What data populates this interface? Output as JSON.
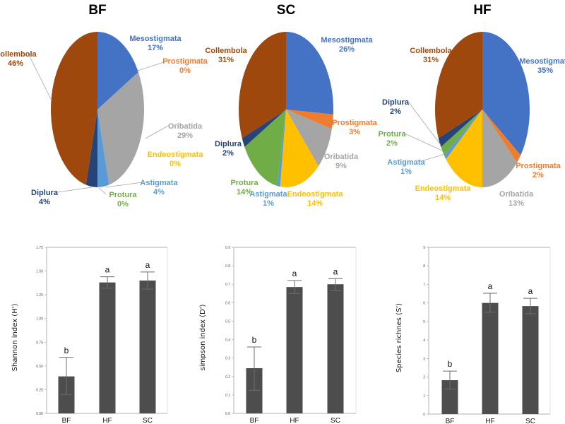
{
  "colors": {
    "Mesostigmata": "#4472c4",
    "Prostigmata": "#ed7d31",
    "Oribatida": "#a5a5a5",
    "Endeostigmata": "#ffc000",
    "Astigmata": "#5b9bd5",
    "Protura": "#70ad47",
    "Diplura": "#264478",
    "Collembola": "#9e480e",
    "bar": "#4d4d4d"
  },
  "chart_data": [
    {
      "type": "pie",
      "title": "BF",
      "slices": [
        {
          "name": "Mesostigmata",
          "value": 17,
          "label": "17%"
        },
        {
          "name": "Prostigmata",
          "value": 0,
          "label": "0%"
        },
        {
          "name": "Oribatida",
          "value": 29,
          "label": "29%"
        },
        {
          "name": "Endeostigmata",
          "value": 0,
          "label": "0%"
        },
        {
          "name": "Astigmata",
          "value": 4,
          "label": "4%"
        },
        {
          "name": "Protura",
          "value": 0,
          "label": "0%"
        },
        {
          "name": "Diplura",
          "value": 4,
          "label": "4%"
        },
        {
          "name": "Collembola",
          "value": 46,
          "label": "46%"
        }
      ]
    },
    {
      "type": "pie",
      "title": "SC",
      "slices": [
        {
          "name": "Mesostigmata",
          "value": 26,
          "label": "26%"
        },
        {
          "name": "Prostigmata",
          "value": 3,
          "label": "3%"
        },
        {
          "name": "Oribatida",
          "value": 9,
          "label": "9%"
        },
        {
          "name": "Endeostigmata",
          "value": 14,
          "label": "14%"
        },
        {
          "name": "Astigmata",
          "value": 1,
          "label": "1%"
        },
        {
          "name": "Protura",
          "value": 14,
          "label": "14%"
        },
        {
          "name": "Diplura",
          "value": 2,
          "label": "2%"
        },
        {
          "name": "Collembola",
          "value": 31,
          "label": "31%"
        }
      ]
    },
    {
      "type": "pie",
      "title": "HF",
      "slices": [
        {
          "name": "Mesostigmata",
          "value": 35,
          "label": "35%"
        },
        {
          "name": "Prostigmata",
          "value": 2,
          "label": "2%"
        },
        {
          "name": "Oribatida",
          "value": 13,
          "label": "13%"
        },
        {
          "name": "Endeostigmata",
          "value": 14,
          "label": "14%"
        },
        {
          "name": "Astigmata",
          "value": 1,
          "label": "1%"
        },
        {
          "name": "Protura",
          "value": 2,
          "label": "2%"
        },
        {
          "name": "Diplura",
          "value": 2,
          "label": "2%"
        },
        {
          "name": "Collembola",
          "value": 31,
          "label": "31%"
        }
      ]
    },
    {
      "type": "bar",
      "title": "",
      "ylabel": "Shannon index (H')",
      "xlabel": "",
      "categories": [
        "BF",
        "HF",
        "SC"
      ],
      "values": [
        0.39,
        1.38,
        1.4
      ],
      "error_upper": [
        0.59,
        1.44,
        1.49
      ],
      "error_lower": [
        0.2,
        1.32,
        1.31
      ],
      "significance": [
        "b",
        "a",
        "a"
      ],
      "ylim": [
        0,
        1.75
      ],
      "yticks": [
        "0.00",
        "0.25",
        "0.50",
        "0.75",
        "1.00",
        "1.25",
        "1.50",
        "1.75"
      ],
      "ytick_values": [
        0,
        0.25,
        0.5,
        0.75,
        1.0,
        1.25,
        1.5,
        1.75
      ],
      "grid": false
    },
    {
      "type": "bar",
      "title": "",
      "ylabel": "simpson index (D')",
      "xlabel": "",
      "categories": [
        "BF",
        "HF",
        "SC"
      ],
      "values": [
        0.245,
        0.685,
        0.7
      ],
      "error_upper": [
        0.36,
        0.72,
        0.73
      ],
      "error_lower": [
        0.125,
        0.65,
        0.665
      ],
      "significance": [
        "b",
        "a",
        "a"
      ],
      "ylim": [
        0,
        0.9
      ],
      "yticks": [
        "0.0",
        "0.1",
        "0.2",
        "0.3",
        "0.4",
        "0.5",
        "0.6",
        "0.7",
        "0.8",
        "0.9"
      ],
      "ytick_values": [
        0,
        0.1,
        0.2,
        0.3,
        0.4,
        0.5,
        0.6,
        0.7,
        0.8,
        0.9
      ],
      "grid": false
    },
    {
      "type": "bar",
      "title": "",
      "ylabel": "Species richnes (S')",
      "xlabel": "",
      "categories": [
        "BF",
        "HF",
        "SC"
      ],
      "values": [
        1.83,
        6.0,
        5.83
      ],
      "error_upper": [
        2.32,
        6.52,
        6.25
      ],
      "error_lower": [
        1.35,
        5.5,
        5.42
      ],
      "significance": [
        "b",
        "a",
        "a"
      ],
      "ylim": [
        0,
        9
      ],
      "yticks": [
        "0",
        "1",
        "2",
        "3",
        "4",
        "5",
        "6",
        "7",
        "8",
        "9"
      ],
      "ytick_values": [
        0,
        1,
        2,
        3,
        4,
        5,
        6,
        7,
        8,
        9
      ],
      "grid": false
    }
  ]
}
